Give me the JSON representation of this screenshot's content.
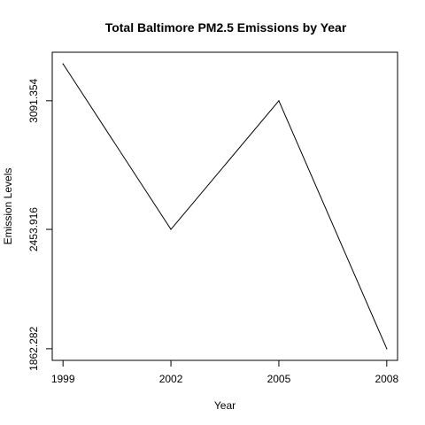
{
  "chart_data": {
    "type": "line",
    "title": "Total Baltimore PM2.5 Emissions by Year",
    "xlabel": "Year",
    "ylabel": "Emission Levels",
    "x": [
      1999,
      2002,
      2005,
      2008
    ],
    "series": [
      {
        "values": [
          3274.18,
          2453.916,
          3091.354,
          1862.282
        ]
      }
    ],
    "x_ticks": [
      "1999",
      "2002",
      "2005",
      "2008"
    ],
    "y_ticks": [
      {
        "value": 3091.354,
        "label": "3091.354"
      },
      {
        "value": 2453.916,
        "label": "2453.916"
      },
      {
        "value": 1862.282,
        "label": "1862.282"
      }
    ],
    "xlim": [
      1998.7,
      2008.3
    ],
    "ylim": [
      1804.6,
      3331.9
    ],
    "grid": false,
    "line_color": "#000000"
  }
}
